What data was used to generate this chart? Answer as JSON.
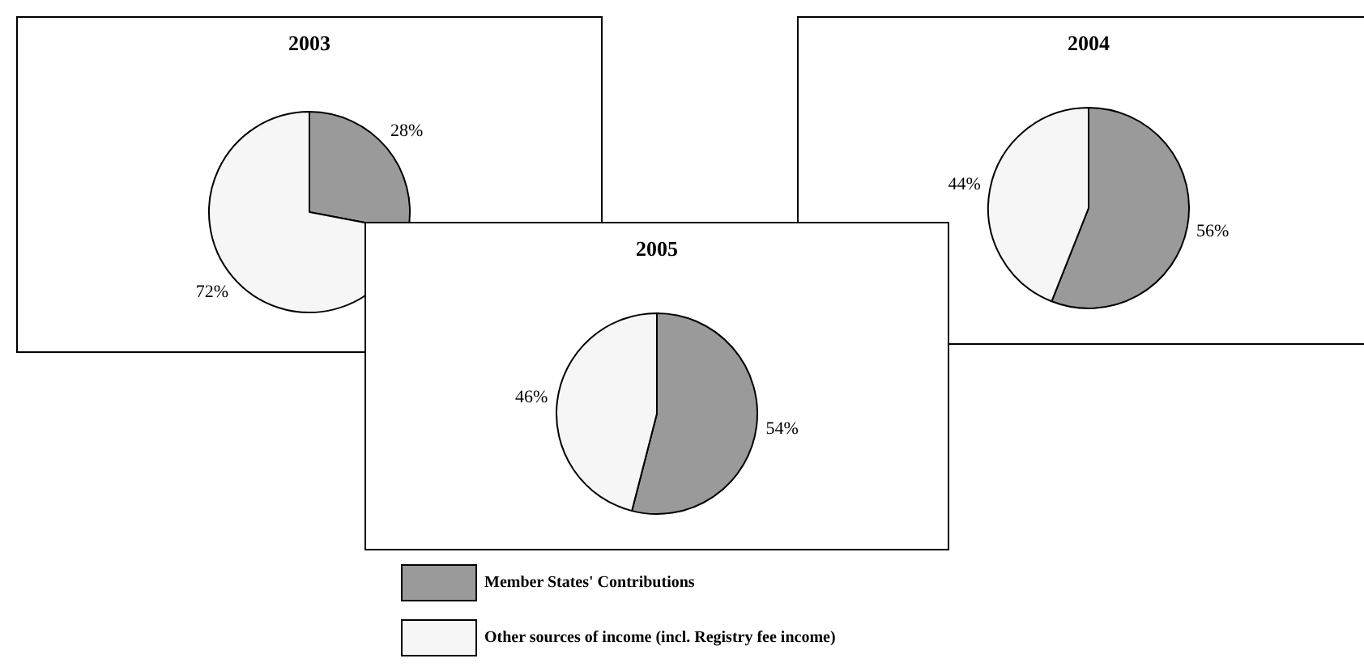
{
  "chart_data": [
    {
      "type": "pie",
      "title": "2003",
      "categories": [
        null,
        null
      ],
      "values": [
        28,
        72
      ],
      "colors": [
        "#9a9a9a",
        "#f6f6f6"
      ],
      "value_labels": [
        "28%",
        "72%"
      ]
    },
    {
      "type": "pie",
      "title": "2004",
      "categories": [
        null,
        null
      ],
      "values": [
        56,
        44
      ],
      "colors": [
        "#9a9a9a",
        "#f6f6f6"
      ],
      "value_labels": [
        "56%",
        "44%"
      ]
    },
    {
      "type": "pie",
      "title": "2005",
      "categories": [
        "Member States' Contributions",
        "Other sources of income (incl. Registry fee income)"
      ],
      "values": [
        54,
        46
      ],
      "colors": [
        "#9a9a9a",
        "#f6f6f6"
      ],
      "value_labels": [
        "54%",
        "46%"
      ],
      "legend": "bottom"
    }
  ]
}
